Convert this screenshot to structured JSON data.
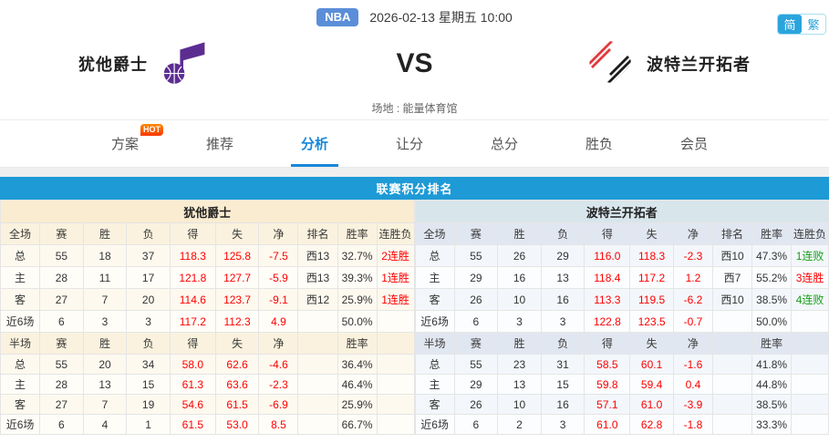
{
  "topbar": {
    "league_badge": "NBA",
    "datetime": "2026-02-13 星期五 10:00",
    "lang_simplified": "简",
    "lang_traditional": "繁"
  },
  "match": {
    "home_team": "犹他爵士",
    "away_team": "波特兰开拓者",
    "vs": "VS",
    "venue": "场地 : 能量体育馆"
  },
  "tabs": [
    {
      "label": "方案",
      "badge": "HOT"
    },
    {
      "label": "推荐"
    },
    {
      "label": "分析",
      "active": true
    },
    {
      "label": "让分"
    },
    {
      "label": "总分"
    },
    {
      "label": "胜负"
    },
    {
      "label": "会员"
    }
  ],
  "section_title": "联赛积分排名",
  "colors": {
    "accent_blue": "#1e9ad6",
    "tab_active_blue": "#1687d9",
    "stat_red": "#ff0000",
    "streak_loss_green": "#16a116",
    "jazz_header_bg": "#f9ecd0",
    "blazers_header_bg": "#d8e6ec",
    "jazz_purple": "#5c2d91",
    "blazers_red": "#e03a3e"
  },
  "tables": [
    {
      "team": "犹他爵士",
      "full_header": [
        "全场",
        "赛",
        "胜",
        "负",
        "得",
        "失",
        "净",
        "排名",
        "胜率",
        "连胜负"
      ],
      "full_rows": [
        [
          "总",
          "55",
          "18",
          "37",
          "118.3",
          "125.8",
          "-7.5",
          "西13",
          "32.7%",
          "2连胜"
        ],
        [
          "主",
          "28",
          "11",
          "17",
          "121.8",
          "127.7",
          "-5.9",
          "西13",
          "39.3%",
          "1连胜"
        ],
        [
          "客",
          "27",
          "7",
          "20",
          "114.6",
          "123.7",
          "-9.1",
          "西12",
          "25.9%",
          "1连胜"
        ],
        [
          "近6场",
          "6",
          "3",
          "3",
          "117.2",
          "112.3",
          "4.9",
          "",
          "50.0%",
          ""
        ]
      ],
      "half_header": [
        "半场",
        "赛",
        "胜",
        "负",
        "得",
        "失",
        "净",
        "",
        "胜率",
        ""
      ],
      "half_rows": [
        [
          "总",
          "55",
          "20",
          "34",
          "58.0",
          "62.6",
          "-4.6",
          "",
          "36.4%",
          ""
        ],
        [
          "主",
          "28",
          "13",
          "15",
          "61.3",
          "63.6",
          "-2.3",
          "",
          "46.4%",
          ""
        ],
        [
          "客",
          "27",
          "7",
          "19",
          "54.6",
          "61.5",
          "-6.9",
          "",
          "25.9%",
          ""
        ],
        [
          "近6场",
          "6",
          "4",
          "1",
          "61.5",
          "53.0",
          "8.5",
          "",
          "66.7%",
          ""
        ]
      ]
    },
    {
      "team": "波特兰开拓者",
      "full_header": [
        "全场",
        "赛",
        "胜",
        "负",
        "得",
        "失",
        "净",
        "排名",
        "胜率",
        "连胜负"
      ],
      "full_rows": [
        [
          "总",
          "55",
          "26",
          "29",
          "116.0",
          "118.3",
          "-2.3",
          "西10",
          "47.3%",
          "1连败"
        ],
        [
          "主",
          "29",
          "16",
          "13",
          "118.4",
          "117.2",
          "1.2",
          "西7",
          "55.2%",
          "3连胜"
        ],
        [
          "客",
          "26",
          "10",
          "16",
          "113.3",
          "119.5",
          "-6.2",
          "西10",
          "38.5%",
          "4连败"
        ],
        [
          "近6场",
          "6",
          "3",
          "3",
          "122.8",
          "123.5",
          "-0.7",
          "",
          "50.0%",
          ""
        ]
      ],
      "half_header": [
        "半场",
        "赛",
        "胜",
        "负",
        "得",
        "失",
        "净",
        "",
        "胜率",
        ""
      ],
      "half_rows": [
        [
          "总",
          "55",
          "23",
          "31",
          "58.5",
          "60.1",
          "-1.6",
          "",
          "41.8%",
          ""
        ],
        [
          "主",
          "29",
          "13",
          "15",
          "59.8",
          "59.4",
          "0.4",
          "",
          "44.8%",
          ""
        ],
        [
          "客",
          "26",
          "10",
          "16",
          "57.1",
          "61.0",
          "-3.9",
          "",
          "38.5%",
          ""
        ],
        [
          "近6场",
          "6",
          "2",
          "3",
          "61.0",
          "62.8",
          "-1.8",
          "",
          "33.3%",
          ""
        ]
      ]
    }
  ]
}
